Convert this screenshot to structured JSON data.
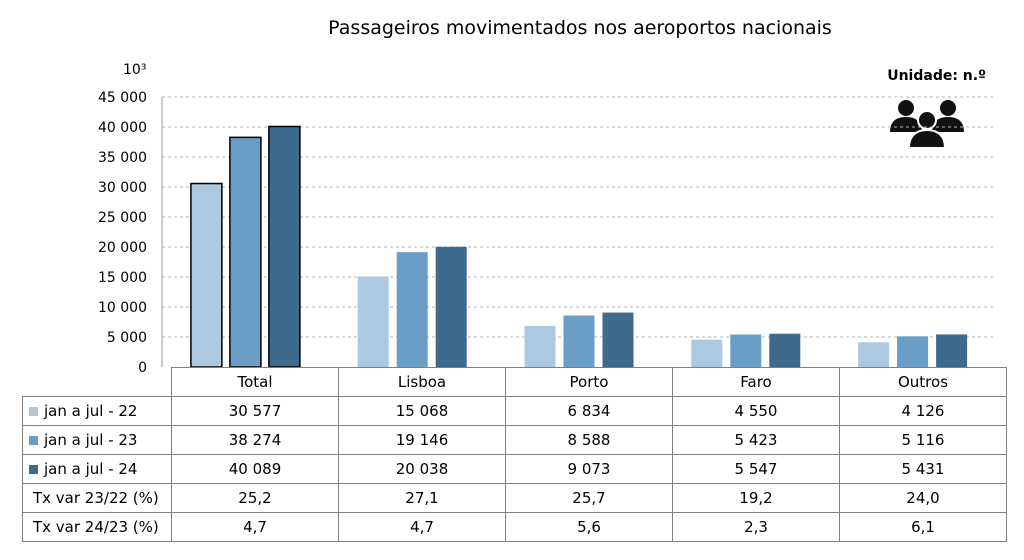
{
  "chart_data": {
    "type": "bar",
    "title": "Passageiros movimentados nos aeroportos nacionais",
    "unit_label": "Unidade: n.º",
    "y_unit": "10³",
    "ylim": [
      0,
      45000
    ],
    "y_ticks": [
      "0",
      "5 000",
      "10 000",
      "15 000",
      "20 000",
      "25 000",
      "30 000",
      "35 000",
      "40 000",
      "45 000"
    ],
    "grid": true,
    "categories": [
      "Total",
      "Lisboa",
      "Porto",
      "Faro",
      "Outros"
    ],
    "series": [
      {
        "name": "jan a jul - 22",
        "color": "#adc9df",
        "values": [
          30577,
          15068,
          6834,
          4550,
          4126
        ],
        "display": [
          "30 577",
          "15 068",
          "6 834",
          "4 550",
          "4 126"
        ]
      },
      {
        "name": "jan a jul - 23",
        "color": "#6a9ec7",
        "values": [
          38274,
          19146,
          8588,
          5423,
          5116
        ],
        "display": [
          "38 274",
          "19 146",
          "8 588",
          "5 423",
          "5 116"
        ]
      },
      {
        "name": "jan a jul - 24",
        "color": "#3e6a8e",
        "values": [
          40089,
          20038,
          9073,
          5547,
          5431
        ],
        "display": [
          "40 089",
          "20 038",
          "9 073",
          "5 547",
          "5 431"
        ]
      }
    ],
    "rates": [
      {
        "name": "Tx var 23/22 (%)",
        "values": [
          "25,2",
          "27,1",
          "25,7",
          "19,2",
          "24,0"
        ]
      },
      {
        "name": "Tx var 24/23 (%)",
        "values": [
          "4,7",
          "4,7",
          "5,6",
          "2,3",
          "6,1"
        ]
      }
    ]
  },
  "icon": "people-group-icon"
}
